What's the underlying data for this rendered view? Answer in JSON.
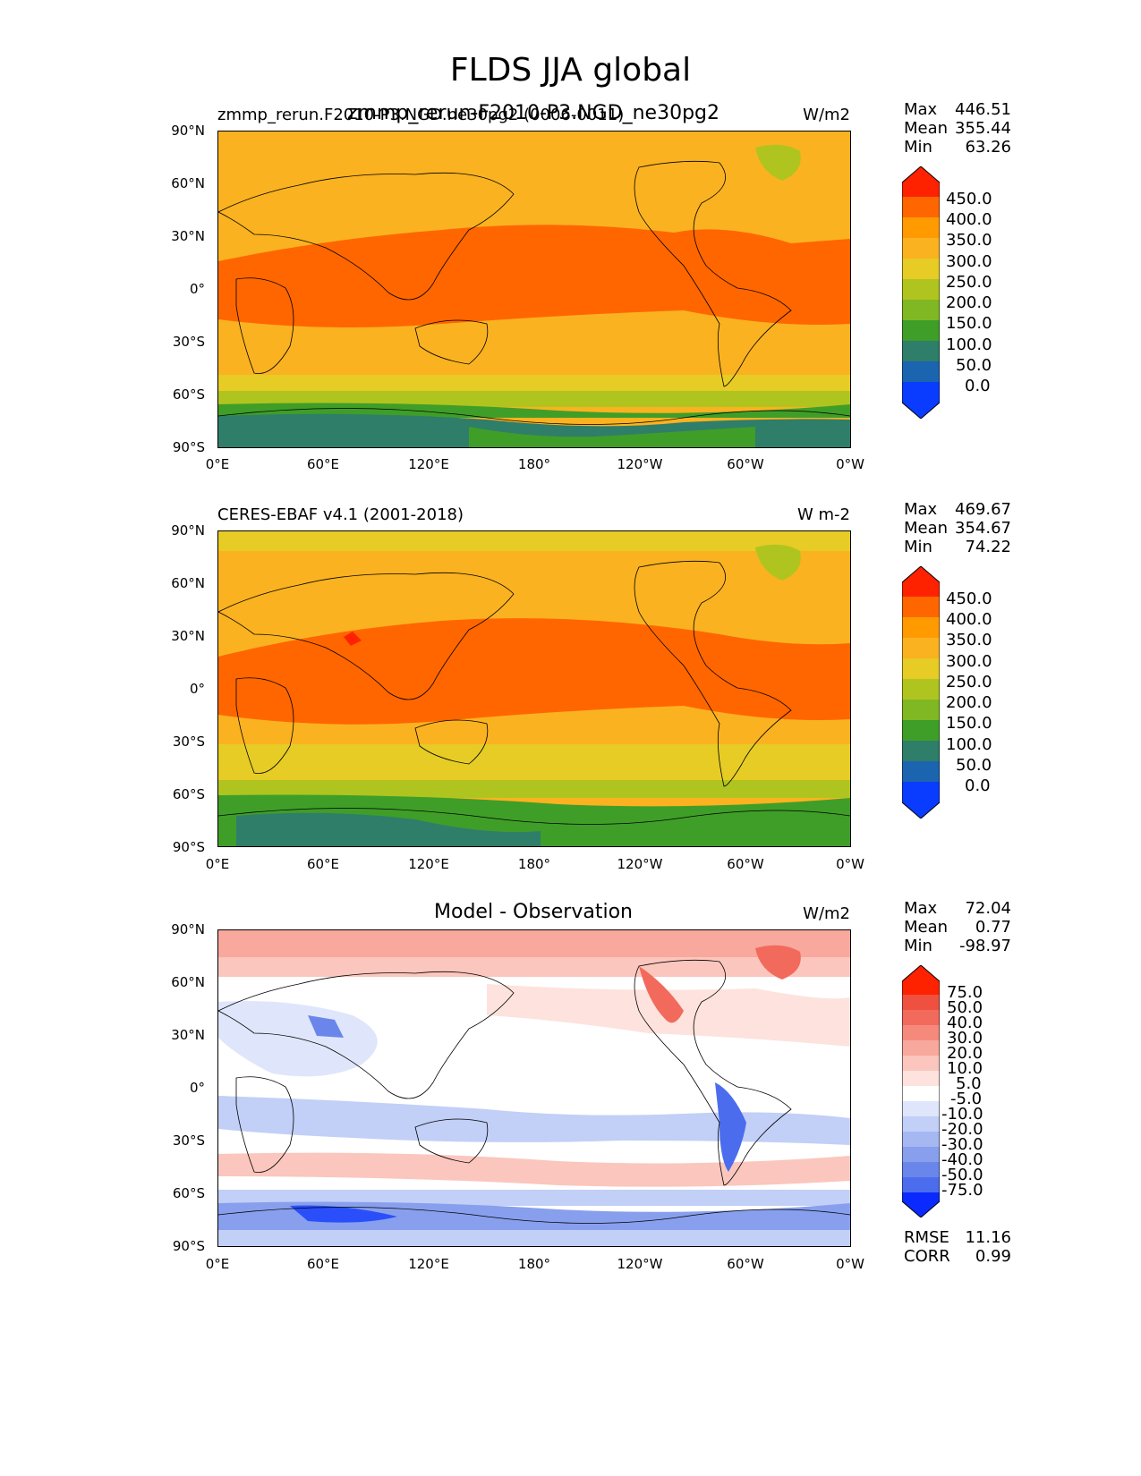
{
  "figure": {
    "title": "FLDS JJA global"
  },
  "axis": {
    "lat_ticks": [
      "90°N",
      "60°N",
      "30°N",
      "0°",
      "30°S",
      "60°S",
      "90°S"
    ],
    "lon_ticks": [
      "0°E",
      "60°E",
      "120°E",
      "180°",
      "120°W",
      "60°W",
      "0°W"
    ]
  },
  "panels": [
    {
      "id": "model",
      "title_left": "zmmp_rerun.F2010-P3.NGD.ne30pg2 (0006-0011)",
      "title_overlay": "zmmp_rerun-F2010-P3.NGD_ne30pg2",
      "units": "W/m2",
      "stats": {
        "max_label": "Max",
        "max": "446.51",
        "mean_label": "Mean",
        "mean": "355.44",
        "min_label": "Min",
        "min": "63.26"
      },
      "colorbar": {
        "labels": [
          "450.0",
          "400.0",
          "350.0",
          "300.0",
          "250.0",
          "200.0",
          "150.0",
          "100.0",
          "50.0",
          "0.0"
        ]
      }
    },
    {
      "id": "obs",
      "title_left": "CERES-EBAF v4.1 (2001-2018)",
      "units": "W m-2",
      "stats": {
        "max_label": "Max",
        "max": "469.67",
        "mean_label": "Mean",
        "mean": "354.67",
        "min_label": "Min",
        "min": "74.22"
      },
      "colorbar": {
        "labels": [
          "450.0",
          "400.0",
          "350.0",
          "300.0",
          "250.0",
          "200.0",
          "150.0",
          "100.0",
          "50.0",
          "0.0"
        ]
      }
    },
    {
      "id": "diff",
      "title_center": "Model - Observation",
      "units": "W/m2",
      "stats": {
        "max_label": "Max",
        "max": "72.04",
        "mean_label": "Mean",
        "mean": "0.77",
        "min_label": "Min",
        "min": "-98.97"
      },
      "colorbar": {
        "labels": [
          "75.0",
          "50.0",
          "40.0",
          "30.0",
          "20.0",
          "10.0",
          "5.0",
          "-5.0",
          "-10.0",
          "-20.0",
          "-30.0",
          "-40.0",
          "-50.0",
          "-75.0"
        ]
      },
      "metrics": {
        "rmse_label": "RMSE",
        "rmse": "11.16",
        "corr_label": "CORR",
        "corr": "0.99"
      }
    }
  ],
  "colors": {
    "field_scale": [
      "#ff2200",
      "#ff6600",
      "#ff9a00",
      "#fbb220",
      "#e6cc25",
      "#b0c41f",
      "#7fb822",
      "#3f9e28",
      "#2e7e6a",
      "#1b64b0",
      "#0a3cff"
    ],
    "diff_scale": [
      "#ff2200",
      "#f05040",
      "#f26a5c",
      "#f58a7c",
      "#f8a89c",
      "#fbc6bd",
      "#fde2dd",
      "#ffffff",
      "#dfe6fb",
      "#c2cff7",
      "#a5b8f2",
      "#889fed",
      "#6a86ea",
      "#4c6cee",
      "#2a4ffa",
      "#0a2aff"
    ]
  }
}
